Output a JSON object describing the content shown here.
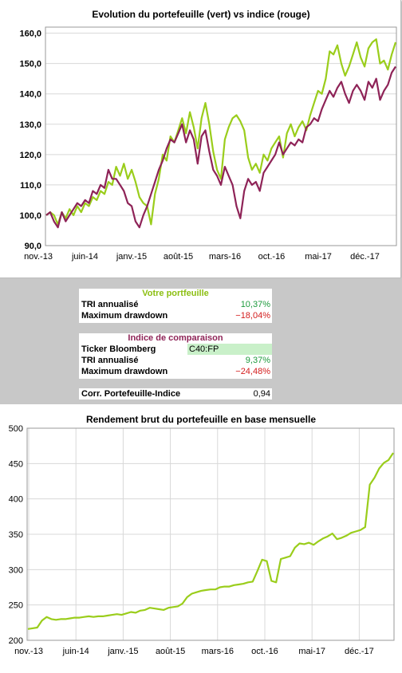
{
  "chart_data": [
    {
      "type": "line",
      "title": "Evolution du portefeuille (vert) vs indice (rouge)",
      "x_tick_labels": [
        "nov.-13",
        "juin-14",
        "janv.-15",
        "août-15",
        "mars-16",
        "oct.-16",
        "mai-17",
        "déc.-17"
      ],
      "y_ticks": [
        90,
        100,
        110,
        120,
        130,
        140,
        150,
        160
      ],
      "y_tick_labels": [
        "90,0",
        "100,0",
        "110,0",
        "120,0",
        "130,0",
        "140,0",
        "150,0",
        "160,0"
      ],
      "ylim": [
        90,
        162
      ],
      "grid": true,
      "series": [
        {
          "color": "#9acd1b",
          "values": [
            100,
            101,
            100,
            97,
            101,
            99,
            102,
            100,
            103,
            101,
            104,
            103,
            106,
            105,
            108,
            107,
            111,
            110,
            116,
            113,
            117,
            112,
            115,
            111,
            106,
            104,
            103,
            97,
            107,
            112,
            120,
            118,
            126,
            124,
            128,
            132,
            127,
            134,
            129,
            122,
            132,
            137,
            130,
            121,
            115,
            112,
            125,
            129,
            132,
            133,
            131,
            128,
            119,
            115,
            117,
            114,
            120,
            118,
            122,
            124,
            126,
            119,
            127,
            130,
            126,
            129,
            131,
            128,
            133,
            137,
            141,
            140,
            145,
            154,
            153,
            156,
            150,
            146,
            149,
            153,
            157,
            152,
            149,
            155,
            157,
            158,
            150,
            151,
            148,
            153,
            157
          ]
        },
        {
          "color": "#8e2357",
          "values": [
            100,
            101,
            98,
            96,
            101,
            98,
            100,
            102,
            104,
            103,
            105,
            104,
            108,
            107,
            110,
            109,
            115,
            112,
            112,
            110,
            108,
            104,
            103,
            98,
            96,
            100,
            103,
            107,
            111,
            115,
            118,
            122,
            125,
            124,
            127,
            130,
            124,
            128,
            125,
            117,
            126,
            128,
            121,
            115,
            113,
            110,
            116,
            113,
            110,
            103,
            99,
            108,
            112,
            110,
            111,
            108,
            114,
            116,
            118,
            120,
            124,
            120,
            122,
            124,
            123,
            125,
            124,
            129,
            130,
            132,
            131,
            135,
            138,
            141,
            139,
            142,
            144,
            140,
            137,
            141,
            143,
            141,
            138,
            144,
            142,
            145,
            138,
            141,
            143,
            147,
            149
          ]
        }
      ]
    },
    {
      "type": "line",
      "title": "Rendement brut du portefeuille en base mensuelle",
      "x_tick_labels": [
        "nov.-13",
        "juin-14",
        "janv.-15",
        "août-15",
        "mars-16",
        "oct.-16",
        "mai-17",
        "déc.-17"
      ],
      "y_ticks": [
        200,
        250,
        300,
        350,
        400,
        450,
        500
      ],
      "y_tick_labels": [
        "200",
        "250",
        "300",
        "350",
        "400",
        "450",
        "500"
      ],
      "ylim": [
        200,
        500
      ],
      "grid": true,
      "series": [
        {
          "color": "#9acd1b",
          "values": [
            216,
            217,
            218,
            228,
            233,
            230,
            229,
            230,
            230,
            231,
            232,
            232,
            233,
            234,
            233,
            234,
            234,
            235,
            236,
            237,
            236,
            238,
            240,
            239,
            242,
            243,
            246,
            245,
            244,
            243,
            246,
            247,
            248,
            252,
            261,
            266,
            268,
            270,
            271,
            272,
            272,
            275,
            276,
            276,
            278,
            279,
            280,
            282,
            283,
            298,
            314,
            312,
            284,
            282,
            315,
            317,
            319,
            331,
            337,
            336,
            338,
            335,
            340,
            344,
            347,
            351,
            343,
            345,
            348,
            352,
            354,
            356,
            360,
            420,
            430,
            443,
            451,
            455,
            465
          ]
        }
      ]
    }
  ],
  "portfolio_box": {
    "title": "Votre portfeuille",
    "tri_label": "TRI annualisé",
    "tri_value": "10,37%",
    "dd_label": "Maximum drawdown",
    "dd_value": "−18,04%"
  },
  "index_box": {
    "title": "Indice de comparaison",
    "ticker_label": "Ticker Bloomberg",
    "ticker_value": "C40:FP",
    "tri_label": "TRI annualisé",
    "tri_value": "9,37%",
    "dd_label": "Maximum drawdown",
    "dd_value": "−24,48%"
  },
  "corr_box": {
    "label": "Corr. Portefeuille-Indice",
    "value": "0,94"
  },
  "colors": {
    "portfolio_line": "#9acd1b",
    "index_line": "#8e2357",
    "positive": "#1d9a3c",
    "negative": "#d31c1c",
    "ticker_bg": "#c9f0c9",
    "grey_band": "#c8c8c8"
  }
}
